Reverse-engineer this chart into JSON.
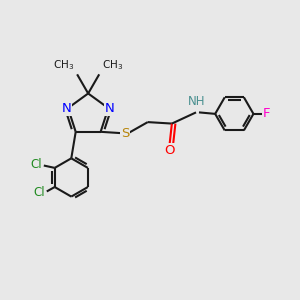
{
  "bg_color": "#e8e8e8",
  "bond_color": "#1a1a1a",
  "N_color": "#0000ff",
  "S_color": "#b8860b",
  "O_color": "#ff0000",
  "F_color": "#ff00cc",
  "Cl_color": "#228b22",
  "H_color": "#4a9090",
  "lw": 1.5,
  "fs": 8.5,
  "xlim": [
    0,
    10
  ],
  "ylim": [
    0,
    10
  ],
  "figsize": [
    3.0,
    3.0
  ],
  "dpi": 100
}
